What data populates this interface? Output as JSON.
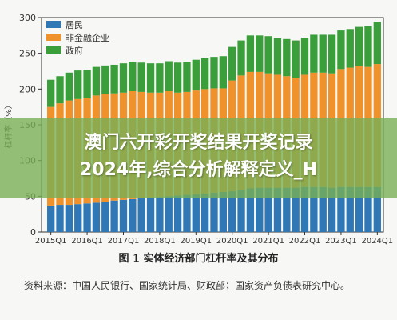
{
  "headline": {
    "line1": "澳门六开彩开奖结果开奖记录",
    "line2": "2024年,综合分析解释定义_H"
  },
  "caption": "图 1 实体经济部门杠杆率及其分布",
  "source": "资料来源：中国人民银行、国家统计局、财政部；国家资产负债表研究中心。",
  "colors": {
    "household": "#2f78b5",
    "corporate": "#f0922b",
    "government": "#3a9e3a",
    "overlay": "#78af55"
  },
  "chart_data": {
    "type": "bar",
    "stacked": true,
    "ylabel": "杠杆率（%）",
    "ylim": [
      0,
      300
    ],
    "yticks": [
      0,
      50,
      100,
      150,
      200,
      250,
      300
    ],
    "xticklabels": [
      "2015Q1",
      "2016Q1",
      "2017Q1",
      "2018Q1",
      "2019Q1",
      "2020Q1",
      "2021Q1",
      "2022Q1",
      "2023Q1",
      "2024Q1"
    ],
    "legend_position": "top-left",
    "categories": [
      "2015Q1",
      "2015Q2",
      "2015Q3",
      "2015Q4",
      "2016Q1",
      "2016Q2",
      "2016Q3",
      "2016Q4",
      "2017Q1",
      "2017Q2",
      "2017Q3",
      "2017Q4",
      "2018Q1",
      "2018Q2",
      "2018Q3",
      "2018Q4",
      "2019Q1",
      "2019Q2",
      "2019Q3",
      "2019Q4",
      "2020Q1",
      "2020Q2",
      "2020Q3",
      "2020Q4",
      "2021Q1",
      "2021Q2",
      "2021Q3",
      "2021Q4",
      "2022Q1",
      "2022Q2",
      "2022Q3",
      "2022Q4",
      "2023Q1",
      "2023Q2",
      "2023Q3",
      "2023Q4",
      "2024Q1"
    ],
    "series": [
      {
        "name": "居民",
        "values": [
          37,
          38,
          38,
          39,
          40,
          41,
          42,
          44,
          45,
          46,
          47,
          48,
          49,
          50,
          51,
          52,
          53,
          54,
          55,
          56,
          57,
          59,
          61,
          62,
          62,
          62,
          62,
          62,
          63,
          63,
          63,
          62,
          63,
          63,
          63,
          63,
          63
        ]
      },
      {
        "name": "非金融企业",
        "values": [
          138,
          142,
          146,
          147,
          147,
          150,
          151,
          150,
          150,
          151,
          149,
          147,
          146,
          147,
          144,
          144,
          145,
          146,
          146,
          145,
          155,
          160,
          163,
          162,
          160,
          158,
          156,
          154,
          157,
          160,
          160,
          160,
          165,
          167,
          169,
          168,
          172
        ]
      },
      {
        "name": "政府",
        "values": [
          38,
          38,
          39,
          40,
          40,
          40,
          40,
          40,
          41,
          41,
          41,
          41,
          41,
          42,
          42,
          42,
          43,
          43,
          44,
          45,
          47,
          49,
          51,
          51,
          52,
          52,
          52,
          52,
          52,
          53,
          53,
          54,
          54,
          54,
          55,
          57,
          59
        ]
      }
    ]
  }
}
